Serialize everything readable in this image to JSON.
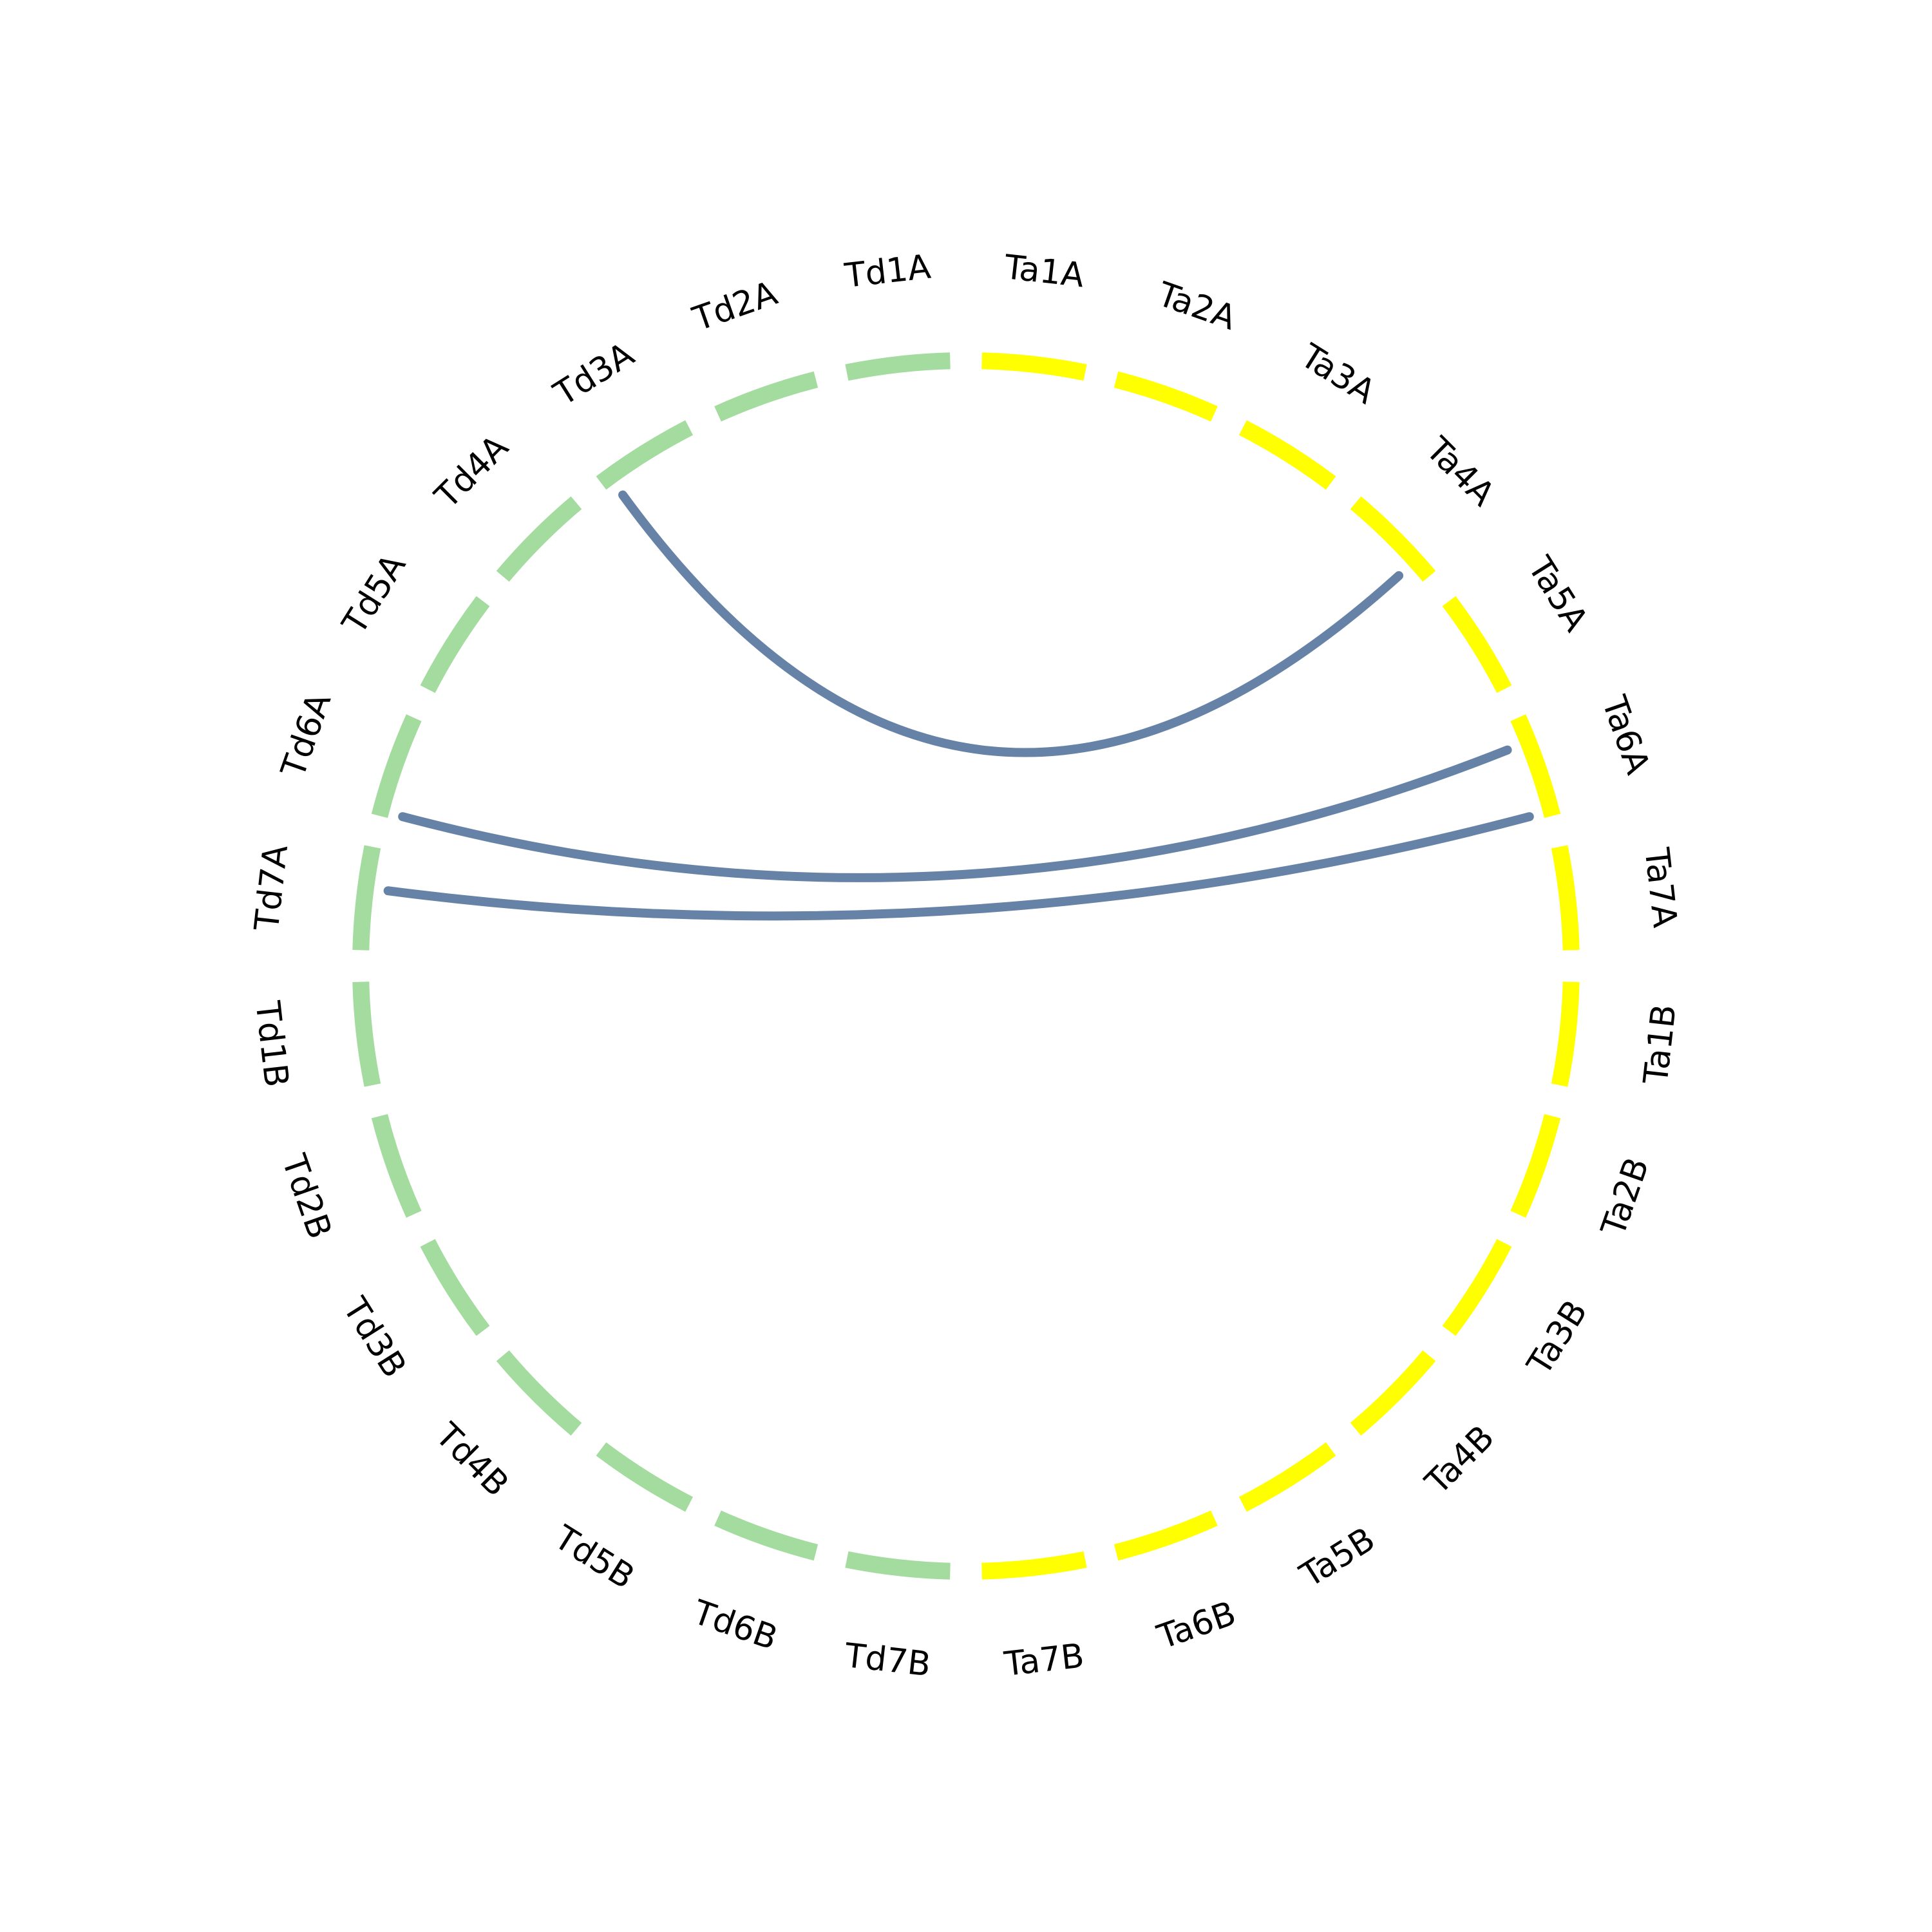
{
  "diagram": {
    "type": "circos",
    "colors": {
      "td": "#a4dca0",
      "ta": "#ffff00",
      "link": "#6683a7"
    },
    "segments": [
      {
        "label": "Ta1A",
        "group": "ta"
      },
      {
        "label": "Ta2A",
        "group": "ta"
      },
      {
        "label": "Ta3A",
        "group": "ta"
      },
      {
        "label": "Ta4A",
        "group": "ta"
      },
      {
        "label": "Ta5A",
        "group": "ta"
      },
      {
        "label": "Ta6A",
        "group": "ta"
      },
      {
        "label": "Ta7A",
        "group": "ta"
      },
      {
        "label": "Ta1B",
        "group": "ta"
      },
      {
        "label": "Ta2B",
        "group": "ta"
      },
      {
        "label": "Ta3B",
        "group": "ta"
      },
      {
        "label": "Ta4B",
        "group": "ta"
      },
      {
        "label": "Ta5B",
        "group": "ta"
      },
      {
        "label": "Ta6B",
        "group": "ta"
      },
      {
        "label": "Ta7B",
        "group": "ta"
      },
      {
        "label": "Td7B",
        "group": "td"
      },
      {
        "label": "Td6B",
        "group": "td"
      },
      {
        "label": "Td5B",
        "group": "td"
      },
      {
        "label": "Td4B",
        "group": "td"
      },
      {
        "label": "Td3B",
        "group": "td"
      },
      {
        "label": "Td2B",
        "group": "td"
      },
      {
        "label": "Td1B",
        "group": "td"
      },
      {
        "label": "Td7A",
        "group": "td"
      },
      {
        "label": "Td6A",
        "group": "td"
      },
      {
        "label": "Td5A",
        "group": "td"
      },
      {
        "label": "Td4A",
        "group": "td"
      },
      {
        "label": "Td3A",
        "group": "td"
      },
      {
        "label": "Td2A",
        "group": "td"
      },
      {
        "label": "Td1A",
        "group": "td"
      }
    ],
    "links": [
      {
        "from": "Td3A",
        "from_pos": 0.1,
        "to": "Ta4A",
        "to_pos": 0.8
      },
      {
        "from": "Td6A",
        "from_pos": 0.05,
        "to": "Ta6A",
        "to_pos": 0.25
      },
      {
        "from": "Td7A",
        "from_pos": 0.6,
        "to": "Ta6A",
        "to_pos": 0.95
      }
    ]
  }
}
